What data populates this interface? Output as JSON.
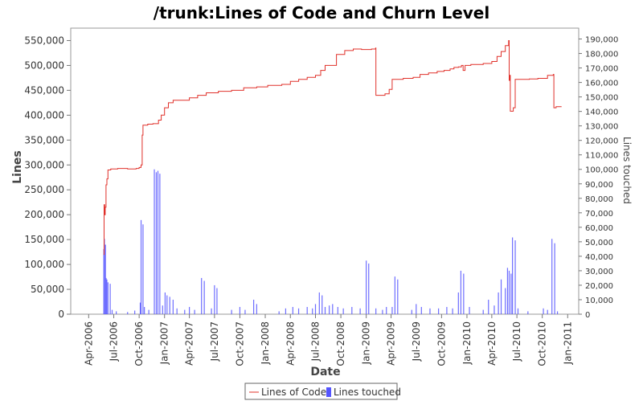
{
  "chart_data": {
    "type": "line",
    "title": "/trunk:Lines of Code and Churn Level",
    "xlabel": "Date",
    "ylabel": "Lines",
    "y2label": "Lines touched",
    "x_range": [
      "2006-01-26",
      "2011-02-10"
    ],
    "ylim": [
      0,
      575000
    ],
    "y2lim": [
      0,
      197500
    ],
    "y_ticks": [
      0,
      50000,
      100000,
      150000,
      200000,
      250000,
      300000,
      350000,
      400000,
      450000,
      500000,
      550000
    ],
    "y_tick_labels": [
      "0",
      "50,000",
      "100,000",
      "150,000",
      "200,000",
      "250,000",
      "300,000",
      "350,000",
      "400,000",
      "450,000",
      "500,000",
      "550,000"
    ],
    "y2_ticks": [
      0,
      10000,
      20000,
      30000,
      40000,
      50000,
      60000,
      70000,
      80000,
      90000,
      100000,
      110000,
      120000,
      130000,
      140000,
      150000,
      160000,
      170000,
      180000,
      190000
    ],
    "y2_tick_labels": [
      "0",
      "10,000",
      "20,000",
      "30,000",
      "40,000",
      "50,000",
      "60,000",
      "70,000",
      "80,000",
      "90,000",
      "100,000",
      "110,000",
      "120,000",
      "130,000",
      "140,000",
      "150,000",
      "160,000",
      "170,000",
      "180,000",
      "190,000"
    ],
    "x_ticks": [
      "2006-04-01",
      "2006-07-01",
      "2006-10-01",
      "2007-01-01",
      "2007-04-01",
      "2007-07-01",
      "2007-10-01",
      "2008-01-01",
      "2008-04-01",
      "2008-07-01",
      "2008-10-01",
      "2009-01-01",
      "2009-04-01",
      "2009-07-01",
      "2009-10-01",
      "2010-01-01",
      "2010-04-01",
      "2010-07-01",
      "2010-10-01",
      "2011-01-01"
    ],
    "x_tick_labels": [
      "Apr-2006",
      "Jul-2006",
      "Oct-2006",
      "Jan-2007",
      "Apr-2007",
      "Jul-2007",
      "Oct-2007",
      "Jan-2008",
      "Apr-2008",
      "Jul-2008",
      "Oct-2008",
      "Jan-2009",
      "Apr-2009",
      "Jul-2009",
      "Oct-2009",
      "Jan-2010",
      "Apr-2010",
      "Jul-2010",
      "Oct-2010",
      "Jan-2011"
    ],
    "grid": false,
    "legend": "bottom",
    "series": [
      {
        "name": "Lines of Code",
        "type": "line",
        "axis": "left",
        "color": "#e0302a",
        "points": [
          [
            "2006-05-25",
            120000
          ],
          [
            "2006-05-27",
            220000
          ],
          [
            "2006-05-29",
            200000
          ],
          [
            "2006-05-31",
            215000
          ],
          [
            "2006-06-03",
            260000
          ],
          [
            "2006-06-06",
            272000
          ],
          [
            "2006-06-10",
            290000
          ],
          [
            "2006-06-20",
            292000
          ],
          [
            "2006-07-15",
            293000
          ],
          [
            "2006-08-20",
            292000
          ],
          [
            "2006-09-20",
            293000
          ],
          [
            "2006-10-01",
            295000
          ],
          [
            "2006-10-08",
            300000
          ],
          [
            "2006-10-12",
            360000
          ],
          [
            "2006-10-15",
            380000
          ],
          [
            "2006-11-01",
            382000
          ],
          [
            "2006-11-20",
            383000
          ],
          [
            "2006-12-01",
            383000
          ],
          [
            "2006-12-10",
            390000
          ],
          [
            "2006-12-20",
            400000
          ],
          [
            "2007-01-01",
            415000
          ],
          [
            "2007-01-15",
            425000
          ],
          [
            "2007-02-01",
            430000
          ],
          [
            "2007-03-01",
            430000
          ],
          [
            "2007-04-01",
            435000
          ],
          [
            "2007-05-01",
            440000
          ],
          [
            "2007-06-01",
            445000
          ],
          [
            "2007-07-15",
            448000
          ],
          [
            "2007-09-01",
            450000
          ],
          [
            "2007-10-15",
            455000
          ],
          [
            "2007-12-01",
            457000
          ],
          [
            "2008-01-10",
            460000
          ],
          [
            "2008-03-01",
            462000
          ],
          [
            "2008-04-01",
            468000
          ],
          [
            "2008-05-01",
            472000
          ],
          [
            "2008-06-01",
            476000
          ],
          [
            "2008-07-01",
            480000
          ],
          [
            "2008-07-20",
            490000
          ],
          [
            "2008-08-05",
            500000
          ],
          [
            "2008-09-01",
            500000
          ],
          [
            "2008-09-15",
            522000
          ],
          [
            "2008-10-15",
            530000
          ],
          [
            "2008-11-15",
            533000
          ],
          [
            "2008-12-15",
            532000
          ],
          [
            "2009-01-20",
            533000
          ],
          [
            "2009-02-04",
            535000
          ],
          [
            "2009-02-05",
            440000
          ],
          [
            "2009-03-10",
            443000
          ],
          [
            "2009-03-25",
            452000
          ],
          [
            "2009-04-05",
            472000
          ],
          [
            "2009-05-15",
            474000
          ],
          [
            "2009-06-20",
            476000
          ],
          [
            "2009-07-15",
            482000
          ],
          [
            "2009-08-15",
            485000
          ],
          [
            "2009-09-15",
            488000
          ],
          [
            "2009-10-10",
            490000
          ],
          [
            "2009-11-01",
            493000
          ],
          [
            "2009-11-15",
            496000
          ],
          [
            "2009-12-01",
            497000
          ],
          [
            "2009-12-12",
            500000
          ],
          [
            "2009-12-18",
            490000
          ],
          [
            "2009-12-25",
            500000
          ],
          [
            "2010-01-15",
            502000
          ],
          [
            "2010-03-01",
            504000
          ],
          [
            "2010-04-01",
            508000
          ],
          [
            "2010-04-20",
            518000
          ],
          [
            "2010-05-05",
            528000
          ],
          [
            "2010-05-20",
            540000
          ],
          [
            "2010-06-01",
            550000
          ],
          [
            "2010-06-03",
            470000
          ],
          [
            "2010-06-05",
            480000
          ],
          [
            "2010-06-07",
            408000
          ],
          [
            "2010-06-18",
            415000
          ],
          [
            "2010-06-25",
            472000
          ],
          [
            "2010-08-15",
            473000
          ],
          [
            "2010-09-15",
            474000
          ],
          [
            "2010-10-20",
            480000
          ],
          [
            "2010-11-10",
            482000
          ],
          [
            "2010-11-12",
            415000
          ],
          [
            "2010-11-20",
            417000
          ],
          [
            "2010-12-10",
            417000
          ]
        ]
      },
      {
        "name": "Lines touched",
        "type": "bar",
        "axis": "right",
        "color": "#5555ff",
        "points": [
          [
            "2006-05-26",
            45000
          ],
          [
            "2006-05-28",
            52000
          ],
          [
            "2006-06-01",
            48000
          ],
          [
            "2006-06-03",
            25000
          ],
          [
            "2006-06-06",
            24000
          ],
          [
            "2006-06-10",
            22000
          ],
          [
            "2006-06-18",
            21000
          ],
          [
            "2006-06-25",
            3000
          ],
          [
            "2006-07-10",
            2000
          ],
          [
            "2006-08-20",
            1500
          ],
          [
            "2006-09-15",
            2500
          ],
          [
            "2006-10-05",
            8000
          ],
          [
            "2006-10-08",
            65000
          ],
          [
            "2006-10-15",
            62000
          ],
          [
            "2006-10-20",
            5000
          ],
          [
            "2006-11-05",
            3000
          ],
          [
            "2006-11-25",
            100000
          ],
          [
            "2006-12-02",
            98000
          ],
          [
            "2006-12-08",
            99000
          ],
          [
            "2006-12-15",
            97000
          ],
          [
            "2006-12-25",
            6000
          ],
          [
            "2007-01-03",
            15000
          ],
          [
            "2007-01-10",
            13000
          ],
          [
            "2007-01-20",
            12000
          ],
          [
            "2007-02-01",
            10000
          ],
          [
            "2007-02-15",
            4000
          ],
          [
            "2007-03-15",
            3000
          ],
          [
            "2007-04-01",
            5000
          ],
          [
            "2007-04-20",
            3000
          ],
          [
            "2007-05-15",
            25000
          ],
          [
            "2007-05-25",
            23000
          ],
          [
            "2007-06-20",
            4000
          ],
          [
            "2007-07-01",
            20000
          ],
          [
            "2007-07-10",
            18000
          ],
          [
            "2007-09-01",
            3000
          ],
          [
            "2007-10-01",
            5000
          ],
          [
            "2007-10-20",
            3000
          ],
          [
            "2007-11-20",
            10000
          ],
          [
            "2007-12-01",
            7000
          ],
          [
            "2008-02-20",
            2000
          ],
          [
            "2008-03-15",
            4000
          ],
          [
            "2008-04-10",
            5000
          ],
          [
            "2008-05-01",
            4000
          ],
          [
            "2008-06-01",
            5000
          ],
          [
            "2008-06-20",
            4000
          ],
          [
            "2008-07-01",
            7000
          ],
          [
            "2008-07-15",
            15000
          ],
          [
            "2008-07-25",
            13000
          ],
          [
            "2008-08-05",
            5000
          ],
          [
            "2008-08-20",
            6000
          ],
          [
            "2008-09-01",
            7000
          ],
          [
            "2008-09-20",
            5000
          ],
          [
            "2008-10-10",
            4000
          ],
          [
            "2008-11-10",
            5000
          ],
          [
            "2008-12-10",
            4000
          ],
          [
            "2009-01-01",
            37000
          ],
          [
            "2009-01-10",
            35000
          ],
          [
            "2009-02-05",
            4000
          ],
          [
            "2009-03-01",
            3000
          ],
          [
            "2009-03-15",
            5000
          ],
          [
            "2009-04-05",
            5000
          ],
          [
            "2009-04-15",
            26000
          ],
          [
            "2009-04-25",
            24000
          ],
          [
            "2009-06-15",
            3000
          ],
          [
            "2009-07-01",
            7000
          ],
          [
            "2009-07-20",
            5000
          ],
          [
            "2009-08-20",
            4000
          ],
          [
            "2009-09-20",
            4000
          ],
          [
            "2009-10-20",
            5000
          ],
          [
            "2009-11-10",
            4000
          ],
          [
            "2009-12-01",
            15000
          ],
          [
            "2009-12-10",
            30000
          ],
          [
            "2009-12-20",
            28000
          ],
          [
            "2010-01-10",
            5000
          ],
          [
            "2010-03-01",
            3000
          ],
          [
            "2010-03-20",
            10000
          ],
          [
            "2010-04-10",
            6000
          ],
          [
            "2010-04-25",
            15000
          ],
          [
            "2010-05-05",
            24000
          ],
          [
            "2010-05-20",
            18000
          ],
          [
            "2010-05-28",
            32000
          ],
          [
            "2010-06-03",
            30000
          ],
          [
            "2010-06-10",
            28000
          ],
          [
            "2010-06-15",
            53000
          ],
          [
            "2010-06-25",
            51000
          ],
          [
            "2010-07-05",
            4000
          ],
          [
            "2010-08-10",
            2000
          ],
          [
            "2010-10-05",
            4000
          ],
          [
            "2010-10-20",
            3000
          ],
          [
            "2010-11-05",
            52000
          ],
          [
            "2010-11-15",
            49000
          ],
          [
            "2010-11-25",
            2000
          ]
        ]
      }
    ]
  }
}
